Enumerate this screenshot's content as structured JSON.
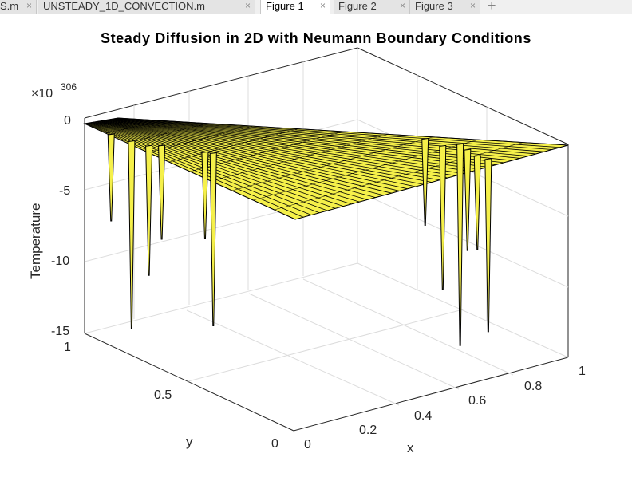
{
  "tabs": [
    {
      "label": "S.m",
      "active": false
    },
    {
      "label": "UNSTEADY_1D_CONVECTION.m",
      "active": false
    },
    {
      "label": "Figure 1",
      "active": true
    },
    {
      "label": "Figure 2",
      "active": false
    },
    {
      "label": "Figure 3",
      "active": false
    }
  ],
  "tab_close_glyph": "×",
  "new_tab_glyph": "+",
  "chart_data": {
    "type": "surface",
    "title": "Steady Diffusion in 2D with Neumann Boundary Conditions",
    "xlabel": "x",
    "ylabel": "y",
    "zlabel": "Temperature",
    "z_exponent_label": "×10",
    "z_exponent": "306",
    "xlim": [
      0,
      1
    ],
    "ylim": [
      0,
      1
    ],
    "zlim": [
      -15,
      0
    ],
    "x_ticks": [
      "0",
      "0.2",
      "0.4",
      "0.6",
      "0.8",
      "1"
    ],
    "y_ticks": [
      "0",
      "0.5",
      "1"
    ],
    "z_ticks": [
      "0",
      "-5",
      "-10",
      "-15"
    ],
    "surface_color": "#f5f04a",
    "edge_color": "#000000",
    "spikes": [
      {
        "x": 0.02,
        "y": 0.88,
        "z": -6
      },
      {
        "x": 0.06,
        "y": 0.8,
        "z": -13
      },
      {
        "x": 0.1,
        "y": 0.74,
        "z": -9
      },
      {
        "x": 0.18,
        "y": 0.72,
        "z": -6.5
      },
      {
        "x": 0.28,
        "y": 0.6,
        "z": -6
      },
      {
        "x": 0.3,
        "y": 0.58,
        "z": -12
      },
      {
        "x": 0.78,
        "y": 0.05,
        "z": -12
      },
      {
        "x": 0.8,
        "y": 0.09,
        "z": -6.5
      },
      {
        "x": 0.86,
        "y": 0.15,
        "z": -7
      },
      {
        "x": 0.88,
        "y": 0.22,
        "z": -10
      },
      {
        "x": 0.92,
        "y": 0.2,
        "z": -14
      },
      {
        "x": 0.96,
        "y": 0.3,
        "z": -6
      }
    ]
  }
}
